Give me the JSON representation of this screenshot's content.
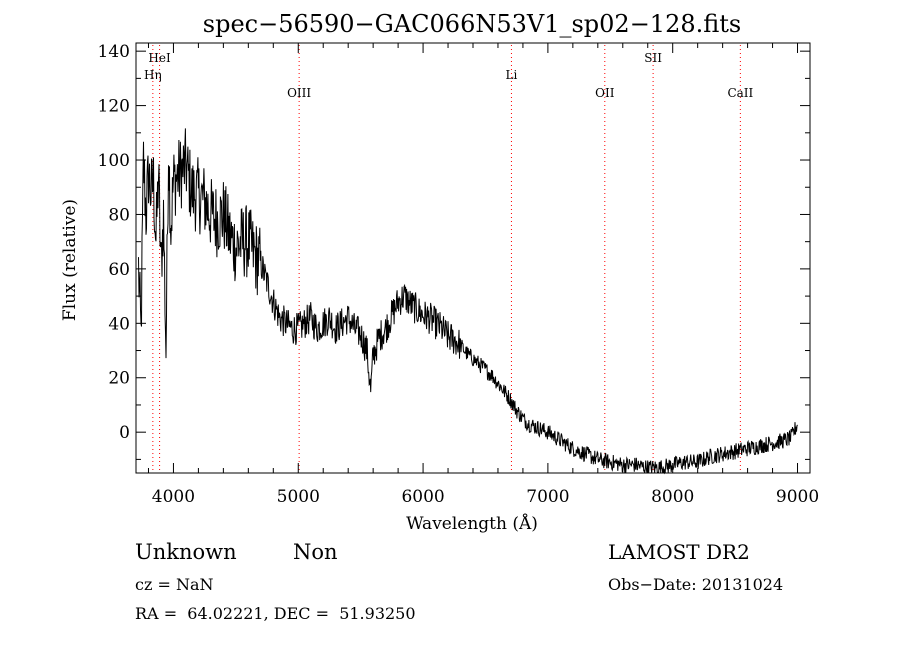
{
  "chart_data": {
    "type": "line",
    "title": "spec−56590−GAC066N53V1_sp02−128.fits",
    "xlabel": "Wavelength (Å)",
    "ylabel": "Flux (relative)",
    "xlim": [
      3700,
      9100
    ],
    "ylim": [
      -15,
      143
    ],
    "xticks": [
      4000,
      5000,
      6000,
      7000,
      8000,
      9000
    ],
    "yticks": [
      0,
      20,
      40,
      60,
      80,
      100,
      120,
      140
    ],
    "grid": false,
    "line_color": "#000000",
    "marker_color": "#ff0000",
    "lines": [
      {
        "label": "HeI",
        "x": 3889,
        "label_row": 1
      },
      {
        "label": "Hη",
        "x": 3835,
        "label_row": 2
      },
      {
        "label": "OIII",
        "x": 5007,
        "label_row": 3
      },
      {
        "label": "Li",
        "x": 6708,
        "label_row": 2
      },
      {
        "label": "OII",
        "x": 7456,
        "label_row": 3
      },
      {
        "label": "SII",
        "x": 7843,
        "label_row": 1
      },
      {
        "label": "CaII",
        "x": 8542,
        "label_row": 3
      }
    ],
    "series": [
      {
        "x": [
          3720,
          3740,
          3760,
          3780,
          3800,
          3820,
          3840,
          3860,
          3880,
          3900,
          3920,
          3940,
          3960,
          3980,
          4000,
          4050,
          4100,
          4150,
          4200,
          4250,
          4300,
          4350,
          4400,
          4450,
          4500,
          4550,
          4600,
          4650,
          4700,
          4750,
          4800,
          4850,
          4900,
          4950,
          5000,
          5050,
          5100,
          5150,
          5200,
          5250,
          5300,
          5350,
          5400,
          5450,
          5500,
          5550,
          5580,
          5600,
          5650,
          5700,
          5750,
          5800,
          5850,
          5900,
          5950,
          6000,
          6050,
          6100,
          6150,
          6200,
          6250,
          6300,
          6350,
          6400,
          6450,
          6500,
          6550,
          6600,
          6650,
          6700,
          6750,
          6800,
          6850,
          6900,
          6950,
          7000,
          7100,
          7200,
          7300,
          7400,
          7500,
          7600,
          7700,
          7800,
          7900,
          8000,
          8100,
          8200,
          8300,
          8400,
          8500,
          8600,
          8700,
          8800,
          8900,
          8950,
          8980,
          9000
        ],
        "y": [
          60,
          35,
          100,
          80,
          95,
          88,
          92,
          70,
          95,
          60,
          80,
          30,
          105,
          75,
          92,
          95,
          98,
          88,
          87,
          85,
          80,
          78,
          80,
          72,
          68,
          70,
          70,
          65,
          62,
          55,
          48,
          42,
          40,
          38,
          38,
          40,
          42,
          38,
          40,
          42,
          38,
          40,
          42,
          38,
          36,
          30,
          15,
          28,
          35,
          38,
          43,
          48,
          50,
          47,
          45,
          43,
          42,
          40,
          38,
          35,
          34,
          32,
          29,
          27,
          25,
          23,
          21,
          18,
          15,
          12,
          8,
          5,
          3,
          2,
          1,
          0,
          -3,
          -6,
          -8,
          -10,
          -11,
          -12,
          -12,
          -13,
          -13,
          -12,
          -11,
          -11,
          -9,
          -8,
          -7,
          -6,
          -5,
          -4,
          -3,
          -2,
          1,
          3
        ]
      }
    ]
  },
  "footer": {
    "class": "Unknown",
    "subclass": "Non",
    "survey": "LAMOST DR2",
    "cz": "cz = NaN",
    "obs_date": "Obs−Date: 20131024",
    "coords": "RA =  64.02221, DEC =  51.93250"
  }
}
